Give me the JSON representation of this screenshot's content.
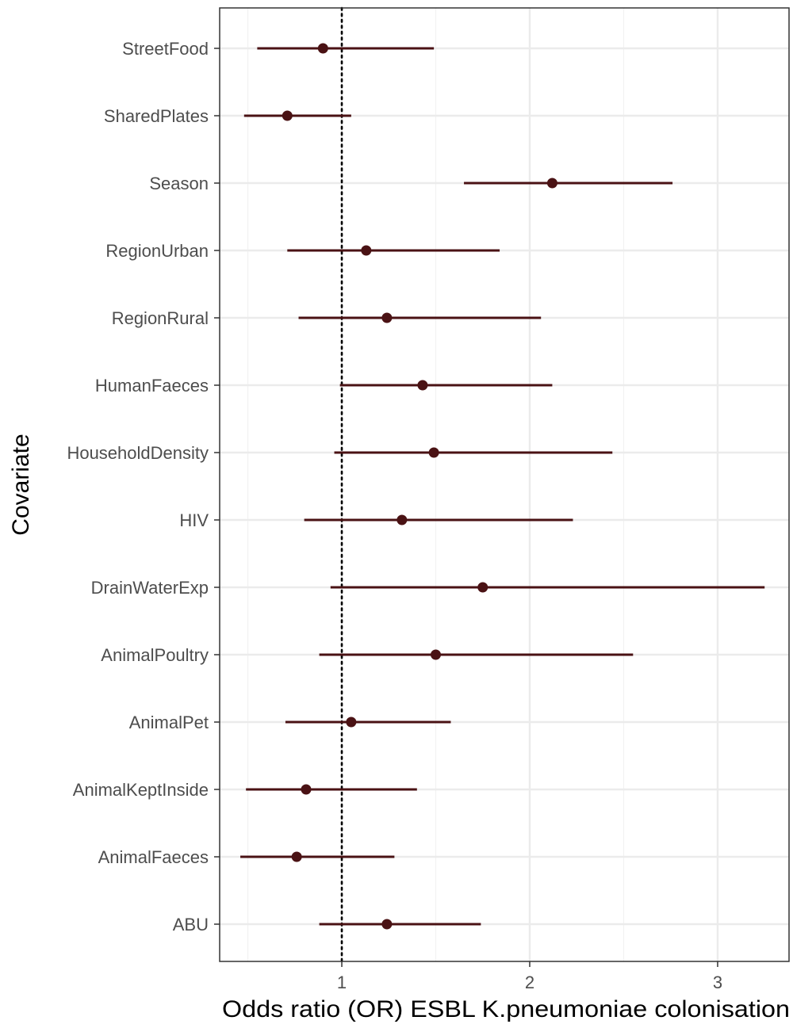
{
  "chart_data": {
    "type": "scatter",
    "subtype": "forest-plot",
    "title": "",
    "xlabel": "Odds ratio (OR) ESBL K.pneumoniae colonisation",
    "ylabel": "Covariate",
    "xlim": [
      0.35,
      3.38
    ],
    "x_ticks": [
      1,
      2,
      3
    ],
    "x_tick_labels": [
      "1",
      "2",
      "3"
    ],
    "x_minor_gridlines": [
      0.5,
      1.5,
      2.5
    ],
    "reference_line": {
      "x": 1,
      "style": "dotted"
    },
    "grid": true,
    "legend": "none",
    "point_color": "#4a1214",
    "categories": [
      "StreetFood",
      "SharedPlates",
      "Season",
      "RegionUrban",
      "RegionRural",
      "HumanFaeces",
      "HouseholdDensity",
      "HIV",
      "DrainWaterExp",
      "AnimalPoultry",
      "AnimalPet",
      "AnimalKeptInside",
      "AnimalFaeces",
      "ABU"
    ],
    "estimates": [
      0.9,
      0.71,
      2.12,
      1.13,
      1.24,
      1.43,
      1.49,
      1.32,
      1.75,
      1.5,
      1.05,
      0.81,
      0.76,
      1.24
    ],
    "lower": [
      0.55,
      0.48,
      1.65,
      0.71,
      0.77,
      0.99,
      0.96,
      0.8,
      0.94,
      0.88,
      0.7,
      0.49,
      0.46,
      0.88
    ],
    "upper": [
      1.49,
      1.05,
      2.76,
      1.84,
      2.06,
      2.12,
      2.44,
      2.23,
      3.25,
      2.55,
      1.58,
      1.4,
      1.28,
      1.74
    ]
  }
}
